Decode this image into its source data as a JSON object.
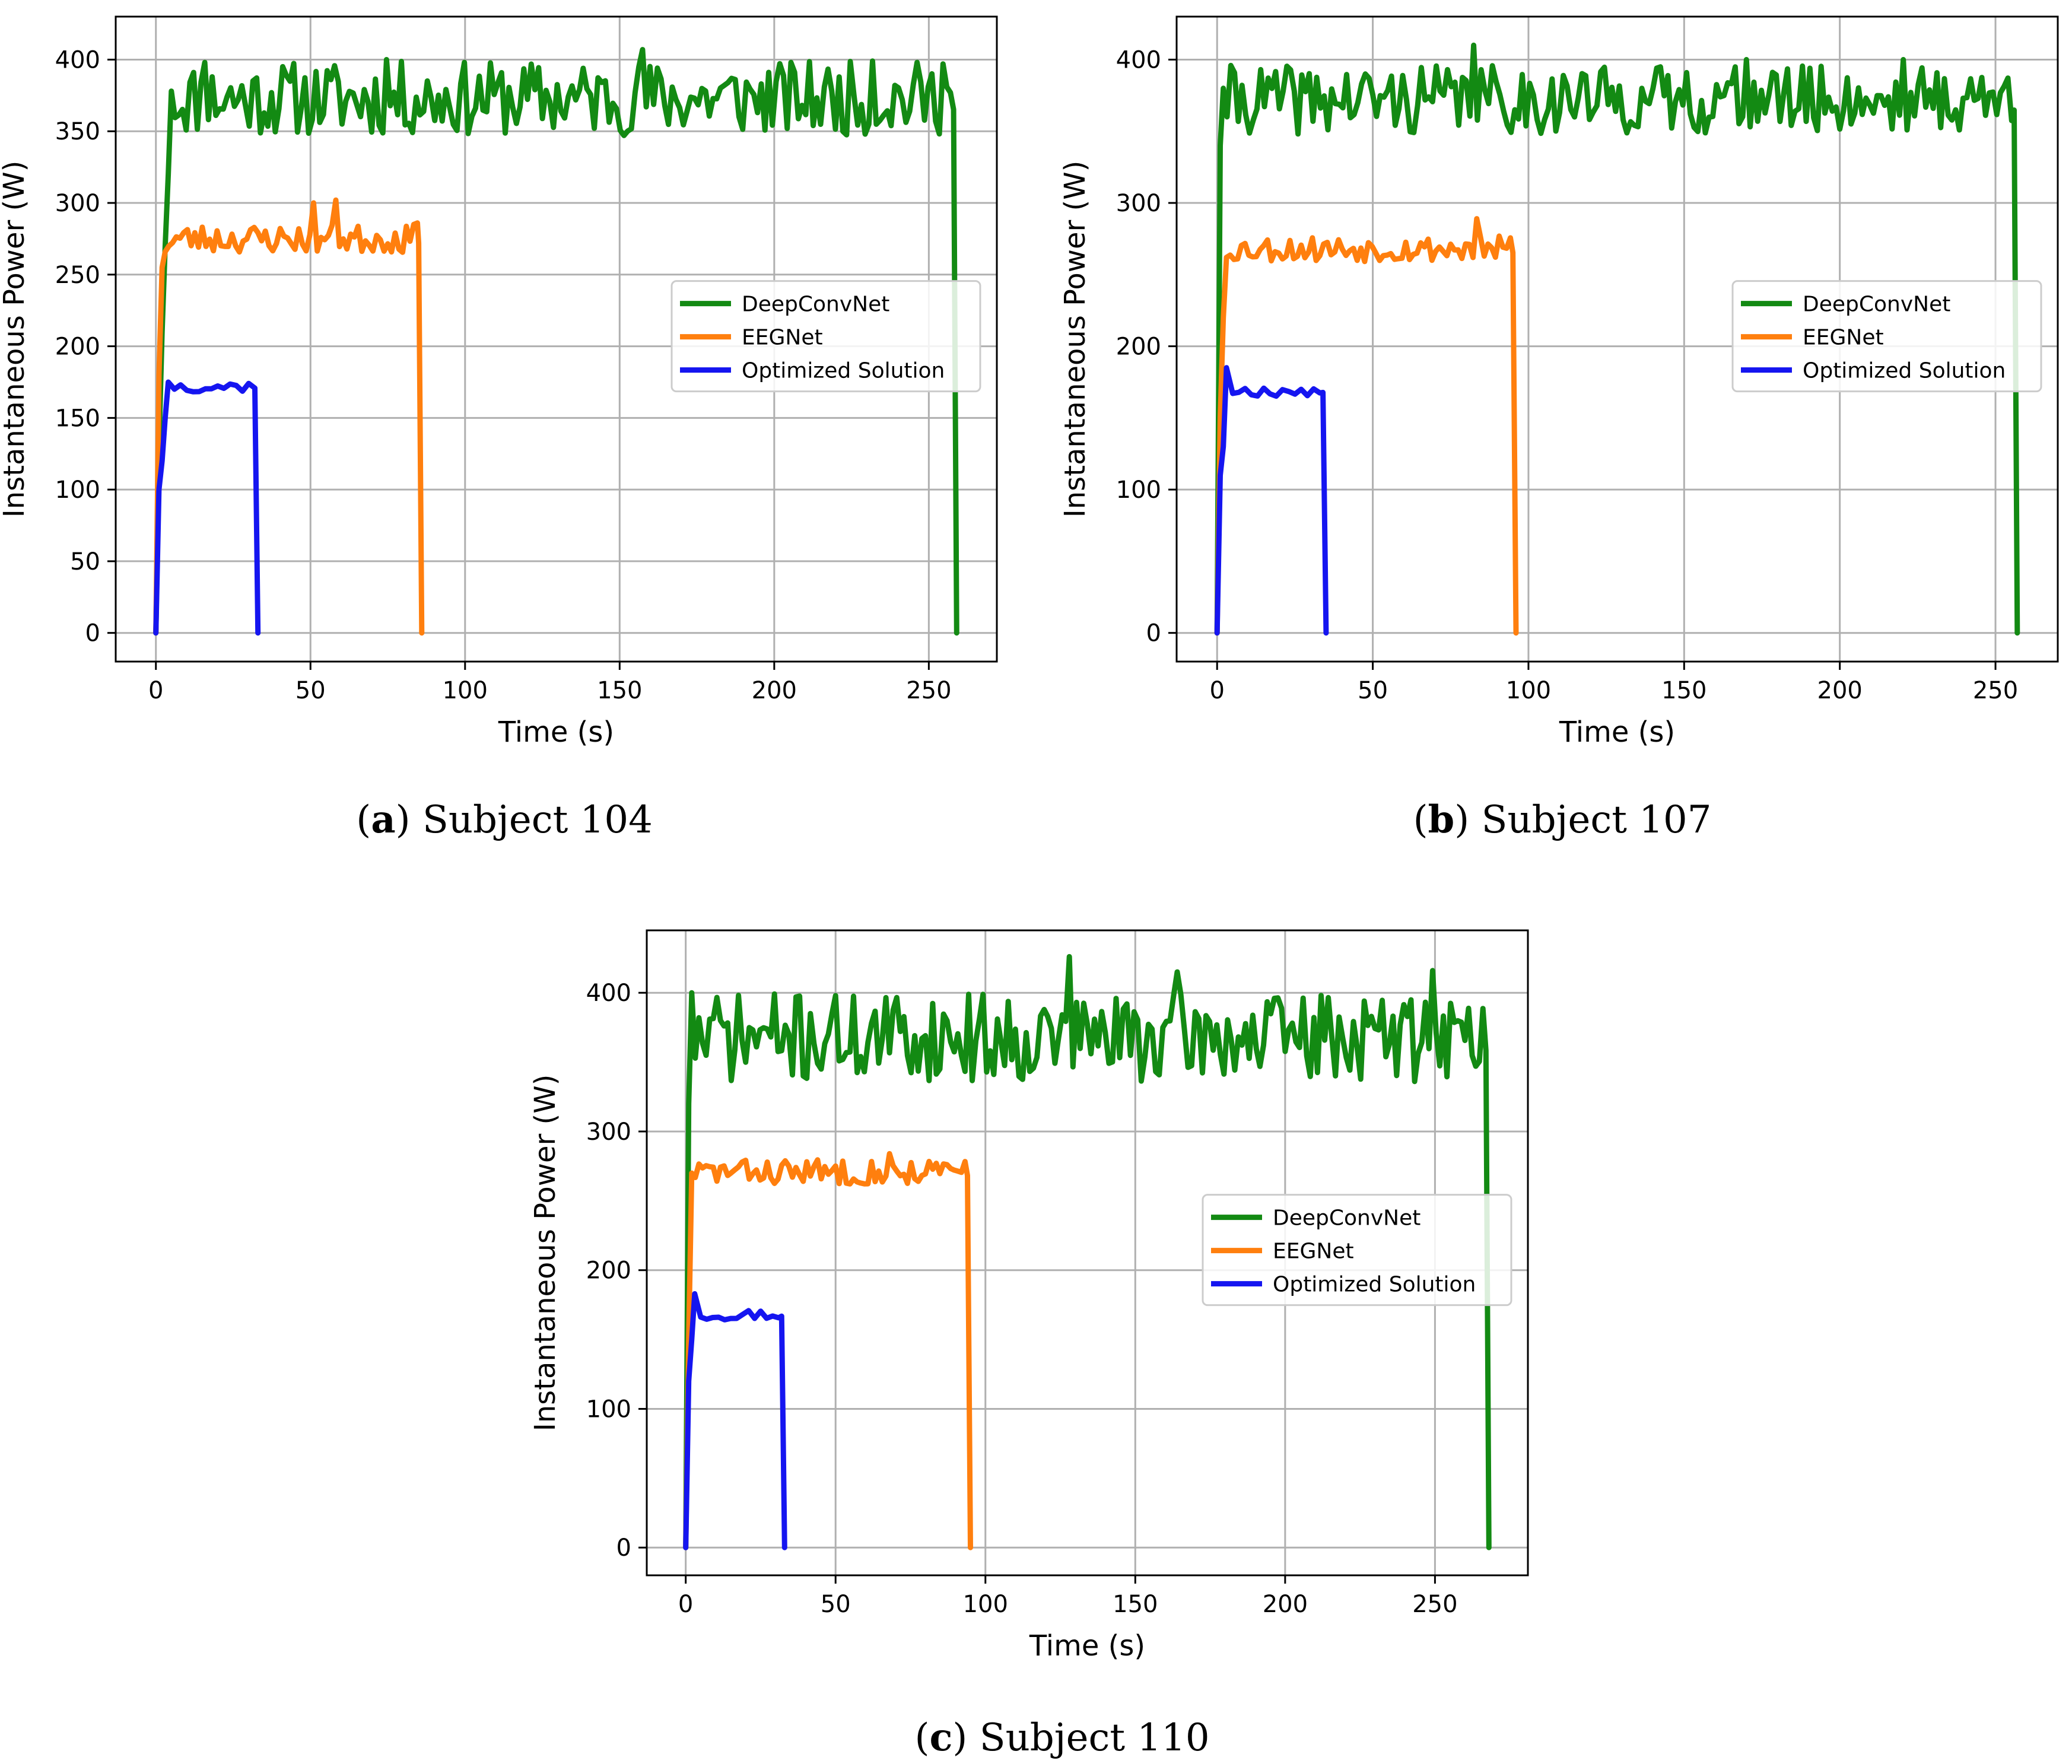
{
  "colors": {
    "DeepConvNet": "#138a13",
    "EEGNet": "#ff7f0e",
    "Optimized Solution": "#1515f0",
    "grid": "#b0b0b0"
  },
  "chart_data": [
    {
      "type": "line",
      "caption_letter": "a",
      "caption_text": "Subject 104",
      "caption": "(a) Subject 104",
      "xlabel": "Time (s)",
      "ylabel": "Instantaneous Power (W)",
      "xlim": [
        -13,
        272
      ],
      "ylim": [
        -20,
        430
      ],
      "xticks": [
        0,
        50,
        100,
        150,
        200,
        250
      ],
      "yticks": [
        0,
        50,
        100,
        150,
        200,
        250,
        300,
        350,
        400
      ],
      "grid": true,
      "legend_position": "center-right",
      "series": [
        {
          "name": "DeepConvNet",
          "end": 259,
          "baseline": 373,
          "rise": [
            [
              0,
              0
            ],
            [
              1,
              130
            ],
            [
              2,
              210
            ],
            [
              3,
              270
            ],
            [
              4,
              320
            ],
            [
              5,
              378
            ]
          ],
          "peaks": [
            [
              16,
              398
            ],
            [
              75,
              400
            ],
            [
              157,
              407
            ],
            [
              232,
              399
            ],
            [
              255,
              397
            ]
          ],
          "seed": 11,
          "amp": 26,
          "step": 1.2
        },
        {
          "name": "EEGNet",
          "end": 86,
          "baseline": 275,
          "rise": [
            [
              0,
              0
            ],
            [
              1,
              180
            ],
            [
              2,
              255
            ],
            [
              3,
              266
            ]
          ],
          "peaks": [
            [
              51,
              300
            ],
            [
              58,
              302
            ],
            [
              85,
              286
            ]
          ],
          "seed": 23,
          "amp": 10,
          "step": 1.2
        },
        {
          "name": "Optimized Solution",
          "end": 33,
          "baseline": 172,
          "rise": [
            [
              0,
              0
            ],
            [
              1,
              100
            ],
            [
              2,
              120
            ],
            [
              3,
              150
            ],
            [
              4,
              175
            ]
          ],
          "peaks": [],
          "seed": 37,
          "amp": 4,
          "step": 2.0
        }
      ]
    },
    {
      "type": "line",
      "caption_letter": "b",
      "caption_text": "Subject 107",
      "caption": "(b) Subject 107",
      "xlabel": "Time (s)",
      "ylabel": "Instantaneous Power (W)",
      "xlim": [
        -13,
        270
      ],
      "ylim": [
        -20,
        430
      ],
      "xticks": [
        0,
        50,
        100,
        150,
        200,
        250
      ],
      "yticks": [
        0,
        100,
        200,
        300,
        400
      ],
      "grid": true,
      "legend_position": "center-right",
      "series": [
        {
          "name": "DeepConvNet",
          "end": 257,
          "baseline": 372,
          "rise": [
            [
              0,
              0
            ],
            [
              1,
              340
            ],
            [
              2,
              380
            ]
          ],
          "peaks": [
            [
              82,
              410
            ],
            [
              170,
              400
            ],
            [
              220,
              400
            ]
          ],
          "seed": 41,
          "amp": 24,
          "step": 1.2
        },
        {
          "name": "EEGNet",
          "end": 96,
          "baseline": 268,
          "rise": [
            [
              0,
              0
            ],
            [
              1,
              150
            ],
            [
              2,
              220
            ],
            [
              3,
              262
            ]
          ],
          "peaks": [
            [
              84,
              289
            ]
          ],
          "seed": 53,
          "amp": 9,
          "step": 1.2
        },
        {
          "name": "Optimized Solution",
          "end": 35,
          "baseline": 169,
          "rise": [
            [
              0,
              0
            ],
            [
              1,
              110
            ],
            [
              2,
              130
            ],
            [
              3,
              185
            ]
          ],
          "peaks": [],
          "seed": 67,
          "amp": 4,
          "step": 2.0
        }
      ]
    },
    {
      "type": "line",
      "caption_letter": "c",
      "caption_text": "Subject 110",
      "caption": "(c)  Subject 110",
      "xlabel": "Time (s)",
      "ylabel": "Instantaneous Power (W)",
      "xlim": [
        -13,
        281
      ],
      "ylim": [
        -20,
        445
      ],
      "xticks": [
        0,
        50,
        100,
        150,
        200,
        250
      ],
      "yticks": [
        0,
        100,
        200,
        300,
        400
      ],
      "grid": true,
      "legend_position": "center-right",
      "series": [
        {
          "name": "DeepConvNet",
          "end": 268,
          "baseline": 368,
          "rise": [
            [
              0,
              0
            ],
            [
              1,
              320
            ],
            [
              2,
              400
            ]
          ],
          "peaks": [
            [
              128,
              426
            ],
            [
              164,
              415
            ],
            [
              249,
              416
            ]
          ],
          "seed": 71,
          "amp": 32,
          "step": 1.2
        },
        {
          "name": "EEGNet",
          "end": 95,
          "baseline": 271,
          "rise": [
            [
              0,
              0
            ],
            [
              1,
              150
            ],
            [
              2,
              270
            ]
          ],
          "peaks": [
            [
              68,
              284
            ]
          ],
          "seed": 83,
          "amp": 9,
          "step": 1.2
        },
        {
          "name": "Optimized Solution",
          "end": 33,
          "baseline": 168,
          "rise": [
            [
              0,
              0
            ],
            [
              1,
              120
            ],
            [
              2,
              150
            ],
            [
              3,
              183
            ]
          ],
          "peaks": [],
          "seed": 97,
          "amp": 4,
          "step": 2.0
        }
      ]
    }
  ]
}
